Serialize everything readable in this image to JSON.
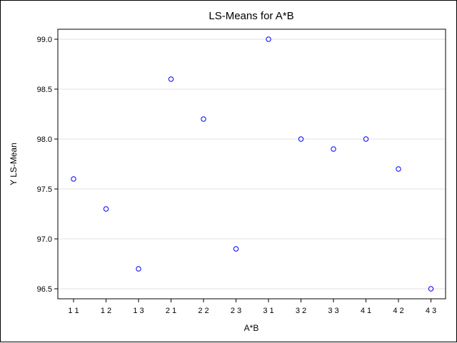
{
  "chart_data": {
    "type": "scatter",
    "title": "LS-Means for A*B",
    "xlabel": "A*B",
    "ylabel": "Y LS-Mean",
    "categories": [
      "1 1",
      "1 2",
      "1 3",
      "2 1",
      "2 2",
      "2 3",
      "3 1",
      "3 2",
      "3 3",
      "4 1",
      "4 2",
      "4 3"
    ],
    "values": [
      97.6,
      97.3,
      96.7,
      98.6,
      98.2,
      96.9,
      99.0,
      98.0,
      97.9,
      98.0,
      97.7,
      96.5
    ],
    "ylim": [
      96.4,
      99.1
    ],
    "yticks": [
      "96.5",
      "97.0",
      "97.5",
      "98.0",
      "98.5",
      "99.0"
    ],
    "grid": true,
    "marker_color": "#0000ff",
    "grid_color": "#e0e0e0"
  }
}
